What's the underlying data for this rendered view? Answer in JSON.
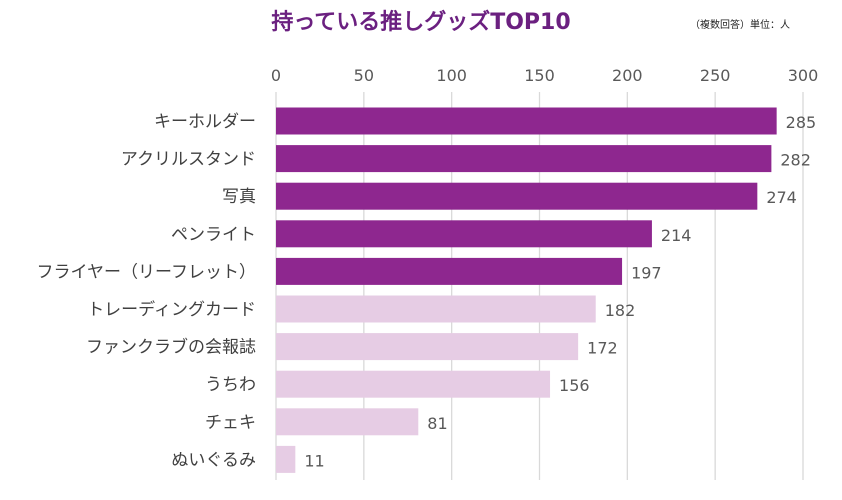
{
  "chart_data": {
    "type": "bar",
    "orientation": "horizontal",
    "title": "持っている推しグッズTOP10",
    "note": "（複数回答）単位：人",
    "categories": [
      "キーホルダー",
      "アクリルスタンド",
      "写真",
      "ペンライト",
      "フライヤー（リーフレット）",
      "トレーディングカード",
      "ファンクラブの会報誌",
      "うちわ",
      "チェキ",
      "ぬいぐるみ"
    ],
    "values": [
      285,
      282,
      274,
      214,
      197,
      182,
      172,
      156,
      81,
      11
    ],
    "xlim": [
      0,
      300
    ],
    "xticks": [
      0,
      50,
      100,
      150,
      200,
      250,
      300
    ],
    "grid": true,
    "highlight_count": 5,
    "colors": {
      "highlight": "#8e278f",
      "normal": "#e6cce4",
      "grid": "#d9d9d9",
      "label": "#404040",
      "title": "#6b2080"
    }
  }
}
